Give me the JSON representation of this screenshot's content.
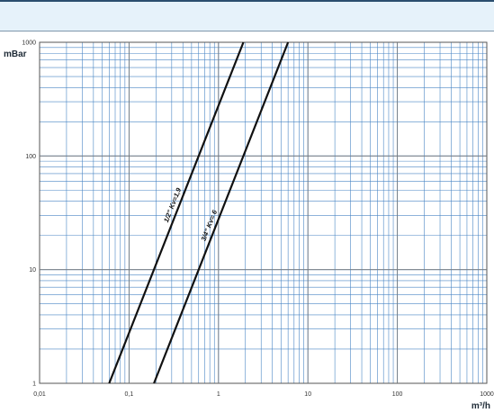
{
  "chart_data": {
    "type": "line",
    "title": "",
    "xlabel": "m³/h",
    "ylabel": "mBar",
    "x_scale": "log",
    "y_scale": "log",
    "xlim": [
      0.01,
      1000
    ],
    "ylim": [
      1,
      1000
    ],
    "x_ticks": [
      "0,01",
      "0,1",
      "1",
      "10",
      "100",
      "1000"
    ],
    "y_ticks": [
      "1",
      "10",
      "100",
      "1000"
    ],
    "grid": true,
    "legend": "none",
    "series": [
      {
        "name": "1/2\" Kv=1,9",
        "x": [
          0.06,
          1.9
        ],
        "y": [
          1,
          1000
        ],
        "color": "#111111"
      },
      {
        "name": "3/4\" Kv= 6",
        "x": [
          0.19,
          6.0
        ],
        "y": [
          1,
          1000
        ],
        "color": "#111111"
      }
    ]
  },
  "colors": {
    "grid": "#4a86c5",
    "curve": "#111111",
    "band": "#e6f2fa"
  }
}
